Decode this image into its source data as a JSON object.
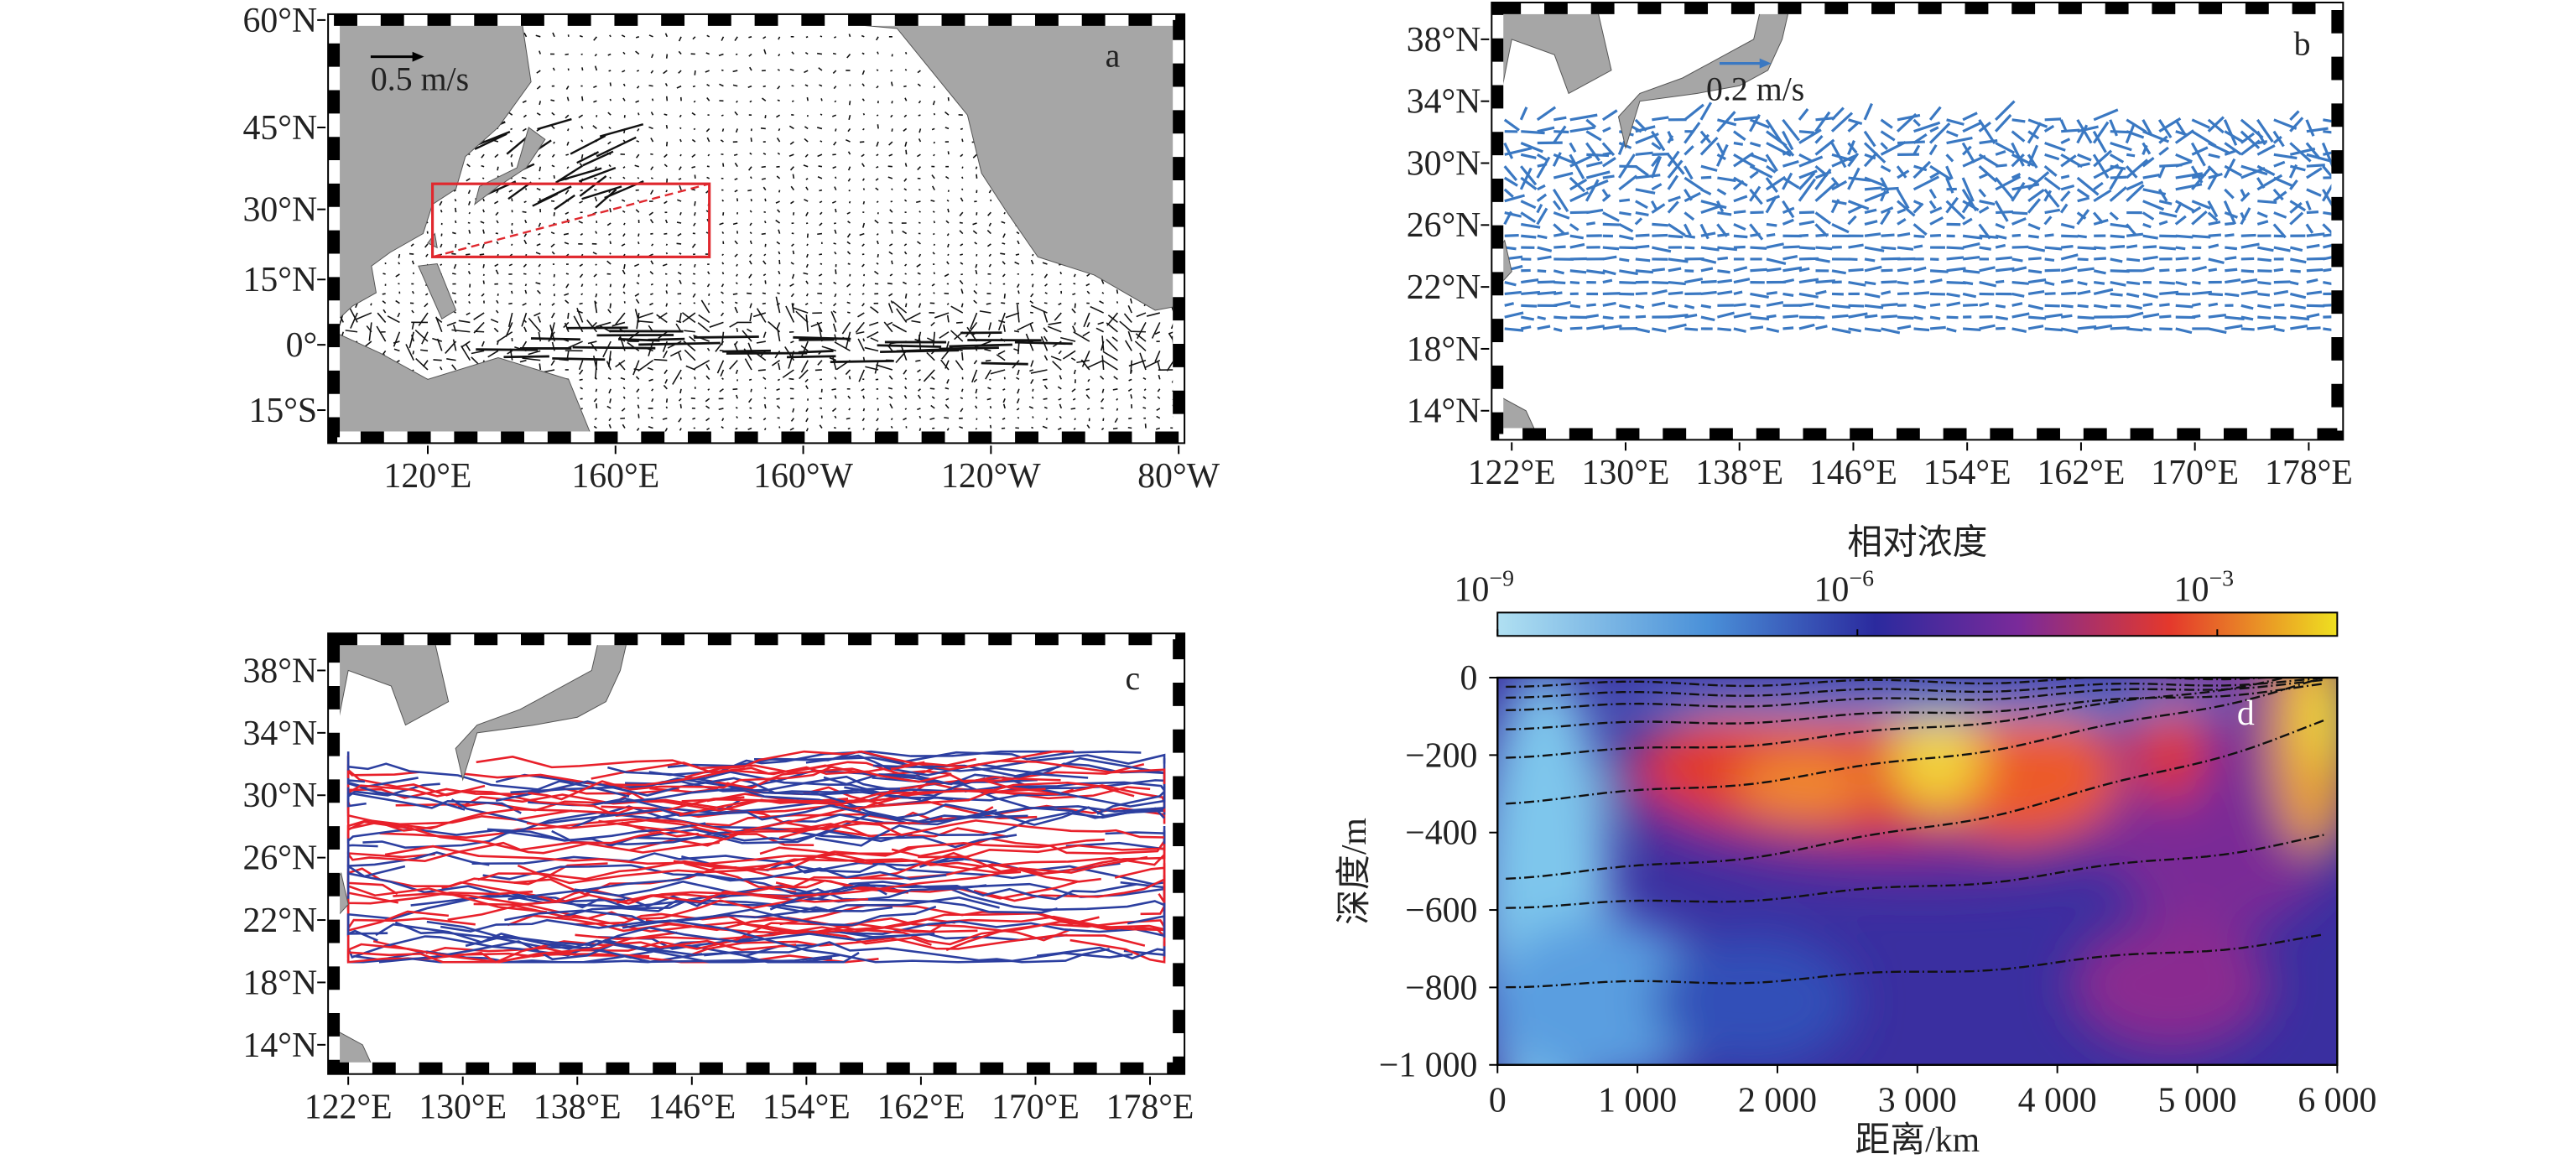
{
  "chart_data": [
    {
      "type": "map",
      "panel_label": "a",
      "projection": "mercator",
      "xlim": [
        100,
        280
      ],
      "ylim": [
        -21,
        60
      ],
      "xticks": [
        {
          "value": 120,
          "label": "120°E"
        },
        {
          "value": 160,
          "label": "160°E"
        },
        {
          "value": 200,
          "label": "160°W"
        },
        {
          "value": 240,
          "label": "120°W"
        },
        {
          "value": 280,
          "label": "80°W"
        }
      ],
      "yticks": [
        {
          "value": -15,
          "label": "15°S"
        },
        {
          "value": 0,
          "label": "0°"
        },
        {
          "value": 15,
          "label": "15°N"
        },
        {
          "value": 30,
          "label": "30°N"
        },
        {
          "value": 45,
          "label": "45°N"
        },
        {
          "value": 60,
          "label": "60°N"
        }
      ],
      "scale_label": "0.5 m/s",
      "box": {
        "xlim": [
          121,
          180
        ],
        "ylim": [
          20,
          35
        ]
      },
      "box_color": "#e0282e",
      "land_color": "#a6a6a6",
      "vector_color": "#111111"
    },
    {
      "type": "map",
      "panel_label": "b",
      "xlim": [
        121,
        180
      ],
      "ylim": [
        12.5,
        40
      ],
      "xticks": [
        {
          "value": 122,
          "label": "122°E"
        },
        {
          "value": 130,
          "label": "130°E"
        },
        {
          "value": 138,
          "label": "138°E"
        },
        {
          "value": 146,
          "label": "146°E"
        },
        {
          "value": 154,
          "label": "154°E"
        },
        {
          "value": 162,
          "label": "162°E"
        },
        {
          "value": 170,
          "label": "170°E"
        },
        {
          "value": 178,
          "label": "178°E"
        }
      ],
      "yticks": [
        {
          "value": 14,
          "label": "14°N"
        },
        {
          "value": 18,
          "label": "18°N"
        },
        {
          "value": 22,
          "label": "22°N"
        },
        {
          "value": 26,
          "label": "26°N"
        },
        {
          "value": 30,
          "label": "30°N"
        },
        {
          "value": 34,
          "label": "34°N"
        },
        {
          "value": 38,
          "label": "38°N"
        }
      ],
      "scale_label": "0.2 m/s",
      "land_color": "#a6a6a6",
      "vector_color": "#3a78c2"
    },
    {
      "type": "tracks",
      "panel_label": "c",
      "xlim": [
        121,
        180
      ],
      "ylim": [
        12.5,
        40
      ],
      "xticks": [
        {
          "value": 122,
          "label": "122°E"
        },
        {
          "value": 130,
          "label": "130°E"
        },
        {
          "value": 138,
          "label": "138°E"
        },
        {
          "value": 146,
          "label": "146°E"
        },
        {
          "value": 154,
          "label": "154°E"
        },
        {
          "value": 162,
          "label": "162°E"
        },
        {
          "value": 170,
          "label": "170°E"
        },
        {
          "value": 178,
          "label": "178°E"
        }
      ],
      "yticks": [
        {
          "value": 14,
          "label": "14°N"
        },
        {
          "value": 18,
          "label": "18°N"
        },
        {
          "value": 22,
          "label": "22°N"
        },
        {
          "value": 26,
          "label": "26°N"
        },
        {
          "value": 30,
          "label": "30°N"
        },
        {
          "value": 34,
          "label": "34°N"
        },
        {
          "value": 38,
          "label": "38°N"
        }
      ],
      "land_color": "#a6a6a6",
      "track_colors": [
        "#e8202a",
        "#2c3fa0"
      ]
    },
    {
      "type": "contour",
      "panel_label": "d",
      "colorbar_title": "相对浓度",
      "log_scale": true,
      "clim": [
        1e-09,
        0.01
      ],
      "cticks": [
        {
          "value": 1e-09,
          "label": "10",
          "exponent": "−9"
        },
        {
          "value": 1e-06,
          "label": "10",
          "exponent": "−6"
        },
        {
          "value": 0.001,
          "label": "10",
          "exponent": "−3"
        }
      ],
      "x_label": "距离/km",
      "y_label": "深度/m",
      "xlim": [
        0,
        6000
      ],
      "ylim": [
        -1000,
        0
      ],
      "xticks": [
        0,
        {
          "value": 1000,
          "label": "1 000"
        },
        {
          "value": 2000,
          "label": "2 000"
        },
        {
          "value": 3000,
          "label": "3 000"
        },
        {
          "value": 4000,
          "label": "4 000"
        },
        {
          "value": 5000,
          "label": "5 000"
        },
        {
          "value": 6000,
          "label": "6 000"
        }
      ],
      "yticks": [
        {
          "value": -1000,
          "label": "−1 000"
        },
        {
          "value": -800,
          "label": "−800"
        },
        {
          "value": -600,
          "label": "−600"
        },
        {
          "value": -400,
          "label": "−400"
        },
        {
          "value": -200,
          "label": "−200"
        },
        0
      ]
    }
  ]
}
